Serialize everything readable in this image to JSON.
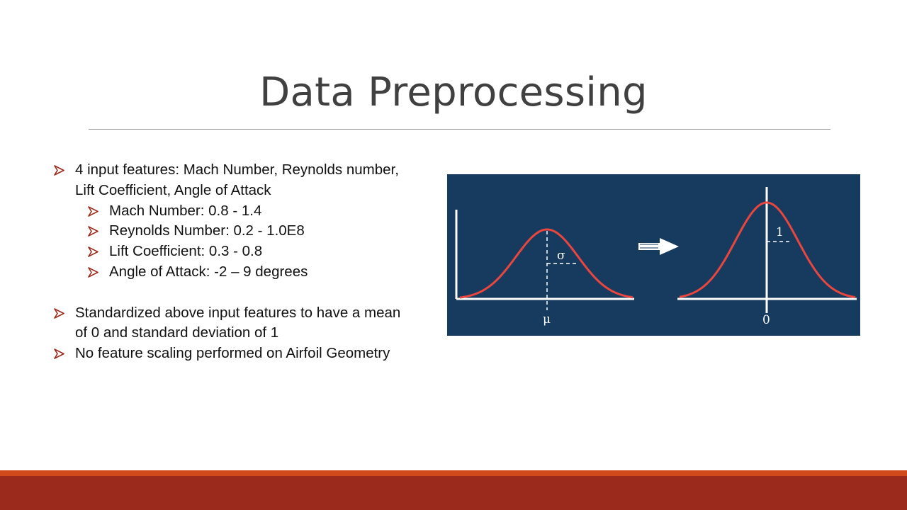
{
  "slide": {
    "title": "Data Preprocessing",
    "bullets": [
      {
        "text": "4 input features: Mach Number, Reynolds number, Lift Coefficient, Angle of Attack",
        "level": 1
      },
      {
        "text": "Mach Number: 0.8 - 1.4",
        "level": 2
      },
      {
        "text": "Reynolds Number: 0.2 - 1.0E8",
        "level": 2
      },
      {
        "text": "Lift Coefficient: 0.3 - 0.8",
        "level": 2
      },
      {
        "text": "Angle of Attack: -2 – 9 degrees",
        "level": 2
      },
      {
        "text": "Standardized above input features to have a mean of 0 and standard deviation of 1",
        "level": 1
      },
      {
        "text": "No feature scaling performed on Airfoil Geometry",
        "level": 1
      }
    ]
  },
  "figure": {
    "left_sigma_label": "σ",
    "left_mu_label": "μ",
    "right_one_label": "1",
    "right_zero_label": "0",
    "arrow_icon": "right-arrow-icon"
  },
  "colors": {
    "title": "#404040",
    "bullet_arrow": "#9b2a1d",
    "figure_background": "#173a5f",
    "curve": "#e8463f",
    "axis": "#ffffff",
    "footer_thin": "#d04a1c",
    "footer_bar": "#9b2a1d"
  }
}
